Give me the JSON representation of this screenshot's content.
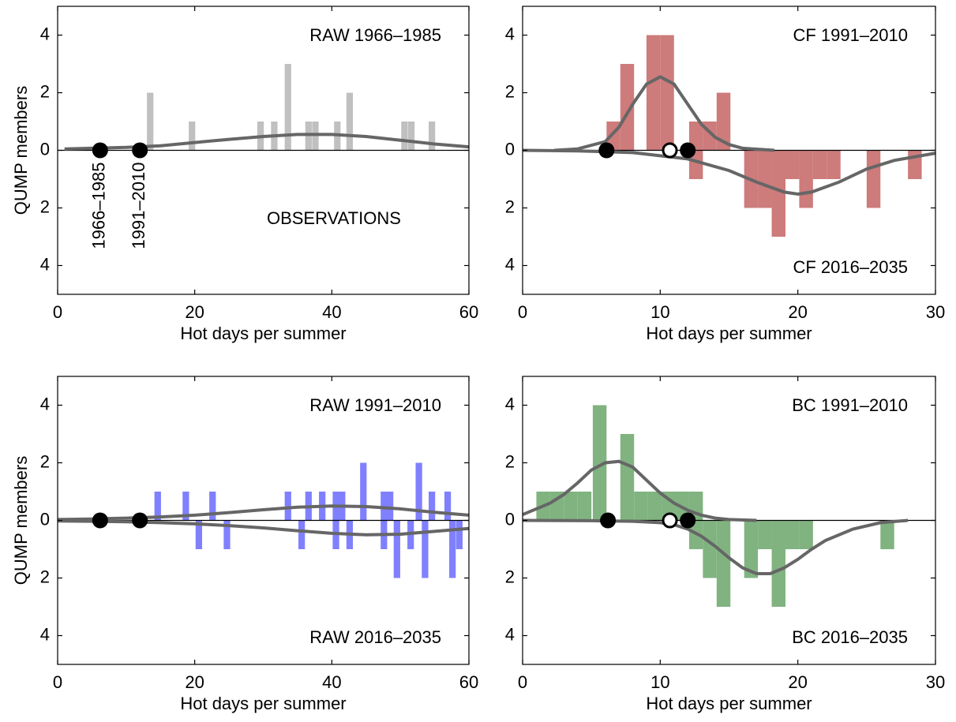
{
  "chart_data": [
    {
      "type": "bar",
      "x_label": "Hot days per summer",
      "y_label": "QUMP members",
      "annotations": {
        "top": "RAW 1966–1985",
        "bottom": "OBSERVATIONS"
      },
      "xlim": [
        0,
        60
      ],
      "xticks": [
        0,
        20,
        40,
        60
      ],
      "ylim": [
        -5,
        5
      ],
      "yticks": [
        {
          "value": -4,
          "label": "4"
        },
        {
          "value": -2,
          "label": "2"
        },
        0,
        2,
        4
      ],
      "series": [
        {
          "color": "#c0c0c0",
          "x": [
            13.5,
            19.6,
            29.6,
            31.6,
            33.6,
            36.6,
            37.6,
            40.8,
            42.6,
            50.6,
            51.6,
            54.6
          ],
          "values": [
            2,
            1,
            1,
            1,
            3,
            1,
            1,
            1,
            2,
            1,
            1,
            1
          ]
        }
      ],
      "curves": [
        {
          "color": "#666666",
          "x": [
            1,
            5,
            10,
            15,
            20,
            25,
            30,
            35,
            40,
            45,
            50,
            55,
            60
          ],
          "values": [
            0.05,
            0.07,
            0.1,
            0.16,
            0.27,
            0.38,
            0.48,
            0.55,
            0.55,
            0.48,
            0.35,
            0.22,
            0.12
          ]
        }
      ],
      "observations": {
        "x": [
          6.2,
          12.0
        ],
        "y": [
          0,
          0
        ],
        "labels": [
          "1966–1985",
          "1991–2010"
        ]
      }
    },
    {
      "type": "bar",
      "x_label": "Hot days per summer",
      "annotations": {
        "top": "CF 1991–2010",
        "bottom": "CF 2016–2035"
      },
      "xlim": [
        0,
        30
      ],
      "xticks": [
        0,
        10,
        20,
        30
      ],
      "ylim": [
        -5,
        5
      ],
      "yticks": [
        {
          "value": -4,
          "label": "4"
        },
        {
          "value": -2,
          "label": "2"
        },
        0,
        2,
        4
      ],
      "series": [
        {
          "color": "#cd7b7b",
          "x": [
            6.6,
            7.6,
            9.5,
            10.5,
            12.6,
            13.6,
            14.6
          ],
          "values": [
            1,
            3,
            4,
            4,
            1,
            1,
            2
          ]
        },
        {
          "color": "#cd7b7b",
          "x": [
            12.6,
            16.6,
            17.6,
            18.6,
            19.6,
            20.6,
            21.6,
            22.6,
            25.5,
            28.5
          ],
          "values": [
            -1,
            -2,
            -2,
            -3,
            -1,
            -2,
            -1,
            -1,
            -2,
            -1
          ]
        }
      ],
      "curves": [
        {
          "color": "#666666",
          "x": [
            2.3,
            4,
            6,
            7,
            8,
            9,
            10,
            11,
            12,
            13,
            14,
            15,
            16,
            18.3
          ],
          "values": [
            0,
            0.05,
            0.3,
            0.8,
            1.6,
            2.3,
            2.55,
            2.3,
            1.6,
            0.9,
            0.45,
            0.2,
            0.07,
            0
          ]
        },
        {
          "color": "#666666",
          "x": [
            0,
            4,
            8,
            12,
            15,
            17,
            19,
            20,
            21,
            23,
            25,
            27,
            30
          ],
          "values": [
            0,
            -0.02,
            -0.08,
            -0.3,
            -0.7,
            -1.1,
            -1.45,
            -1.52,
            -1.45,
            -1.1,
            -0.65,
            -0.35,
            -0.1
          ]
        }
      ],
      "observations": {
        "x": [
          6.1,
          12.0
        ],
        "y": [
          0,
          0
        ]
      },
      "projection": {
        "x": [
          10.7
        ],
        "y": [
          0
        ]
      }
    },
    {
      "type": "bar",
      "x_label": "Hot days per summer",
      "y_label": "QUMP members",
      "annotations": {
        "top": "RAW 1991–2010",
        "bottom": "RAW 2016–2035"
      },
      "xlim": [
        0,
        60
      ],
      "xticks": [
        0,
        20,
        40,
        60
      ],
      "ylim": [
        -5,
        5
      ],
      "yticks": [
        {
          "value": -4,
          "label": "4"
        },
        {
          "value": -2,
          "label": "2"
        },
        0,
        2,
        4
      ],
      "series": [
        {
          "color": "#8080ff",
          "x": [
            14.6,
            18.7,
            22.6,
            33.6,
            36.6,
            38.6,
            40.6,
            41.5,
            44.6,
            47.6,
            48.5,
            52.7,
            54.6,
            56.9
          ],
          "values": [
            1,
            1,
            1,
            1,
            1,
            1,
            1,
            1,
            2,
            1,
            1,
            2,
            1,
            1
          ]
        },
        {
          "color": "#8080ff",
          "x": [
            20.6,
            24.7,
            35.6,
            40.6,
            42.6,
            47.6,
            49.5,
            51.5,
            53.6,
            57.6,
            58.6
          ],
          "values": [
            -1,
            -1,
            -1,
            -1,
            -1,
            -1,
            -2,
            -1,
            -2,
            -2,
            -1
          ]
        }
      ],
      "curves": [
        {
          "color": "#666666",
          "x": [
            0,
            5,
            10,
            15,
            20,
            25,
            30,
            35,
            40,
            45,
            50,
            55,
            60
          ],
          "values": [
            0.03,
            0.05,
            0.08,
            0.12,
            0.18,
            0.27,
            0.37,
            0.46,
            0.5,
            0.48,
            0.4,
            0.28,
            0.18
          ]
        },
        {
          "color": "#666666",
          "x": [
            0,
            5,
            10,
            15,
            20,
            25,
            30,
            35,
            40,
            45,
            50,
            55,
            60
          ],
          "values": [
            -0.02,
            -0.03,
            -0.05,
            -0.08,
            -0.12,
            -0.18,
            -0.26,
            -0.36,
            -0.45,
            -0.5,
            -0.48,
            -0.38,
            -0.28
          ]
        }
      ],
      "observations": {
        "x": [
          6.2,
          12.0
        ],
        "y": [
          0,
          0
        ]
      }
    },
    {
      "type": "bar",
      "x_label": "Hot days per summer",
      "annotations": {
        "top": "BC 1991–2010",
        "bottom": "BC 2016–2035"
      },
      "xlim": [
        0,
        30
      ],
      "xticks": [
        0,
        10,
        20,
        30
      ],
      "ylim": [
        -5,
        5
      ],
      "yticks": [
        {
          "value": -4,
          "label": "4"
        },
        {
          "value": -2,
          "label": "2"
        },
        0,
        2,
        4
      ],
      "series": [
        {
          "color": "#80b380",
          "x": [
            1.5,
            2.5,
            3.5,
            4.5,
            5.6,
            7.6,
            8.6,
            9.6,
            10.6,
            11.6,
            12.6
          ],
          "values": [
            1,
            1,
            1,
            1,
            4,
            3,
            1,
            1,
            1,
            1,
            1
          ]
        },
        {
          "color": "#80b380",
          "x": [
            12.6,
            13.6,
            14.6,
            16.6,
            17.6,
            18.6,
            19.6,
            20.6,
            26.5
          ],
          "values": [
            -1,
            -2,
            -3,
            -2,
            -1,
            -3,
            -1,
            -1,
            -1
          ]
        }
      ],
      "curves": [
        {
          "color": "#666666",
          "x": [
            0,
            2,
            3,
            4,
            5,
            6,
            7,
            8,
            9,
            10,
            11,
            12,
            13,
            14,
            15,
            17
          ],
          "values": [
            0.2,
            0.6,
            0.9,
            1.3,
            1.75,
            2.0,
            2.05,
            1.85,
            1.4,
            0.95,
            0.6,
            0.35,
            0.18,
            0.08,
            0.03,
            0
          ]
        },
        {
          "color": "#666666",
          "x": [
            0,
            5,
            8,
            10,
            11,
            12,
            13,
            14,
            15,
            16,
            17,
            18,
            19,
            20,
            21,
            22,
            24,
            26,
            28
          ],
          "values": [
            0,
            -0.01,
            -0.03,
            -0.08,
            -0.15,
            -0.3,
            -0.55,
            -0.9,
            -1.3,
            -1.65,
            -1.85,
            -1.85,
            -1.65,
            -1.35,
            -1,
            -0.7,
            -0.3,
            -0.08,
            0
          ]
        }
      ],
      "observations": {
        "x": [
          6.2,
          12.0
        ],
        "y": [
          0,
          0
        ]
      },
      "projection": {
        "x": [
          10.7
        ],
        "y": [
          0
        ]
      }
    }
  ]
}
